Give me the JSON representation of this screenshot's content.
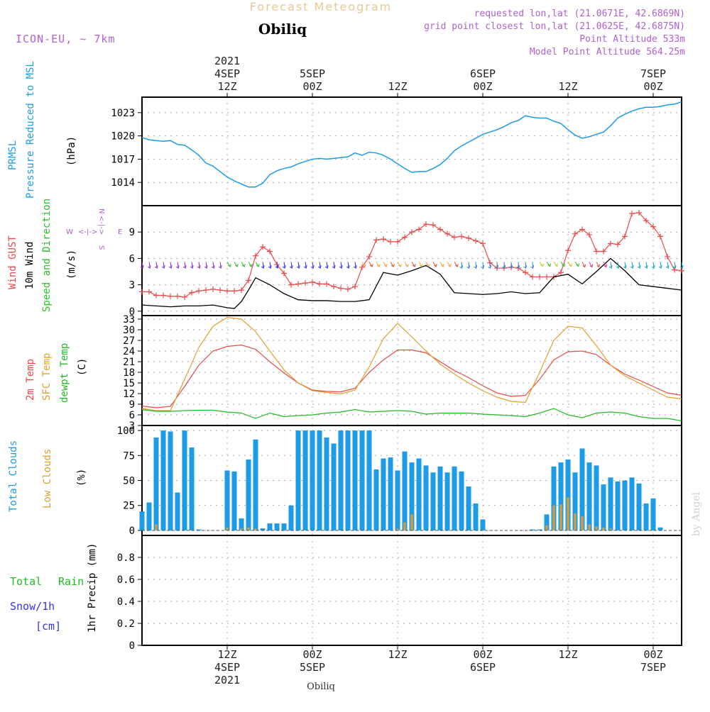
{
  "header": {
    "title": "Forecast Meteogram",
    "location": "Obiliq",
    "model": "ICON-EU, ~ 7km",
    "requested": "requested lon,lat (21.0671E, 42.6869N)",
    "gridpoint": "grid point closest lon,lat (21.0625E, 42.6875N)",
    "point_alt": "Point Altitude 533m",
    "model_alt": "Model Point Altitude 564.25m"
  },
  "footer": {
    "location": "Obiliq",
    "credit": "by Angel"
  },
  "colors": {
    "pressure": "#1e9be6",
    "gust": "#e84a4a",
    "wind": "#000000",
    "dirlabel": "#2bbf2b",
    "temp2m": "#e84a4a",
    "sfc": "#e0a030",
    "dew": "#22bb22",
    "total_clouds": "#1e9be6",
    "low_clouds": "#c8a048",
    "rain": "#22bb22",
    "snow": "#3333ee",
    "purple": "#b060d0"
  },
  "time_axis": {
    "top": [
      {
        "t": 12,
        "lines": [
          "2021",
          "4SEP",
          "12Z"
        ]
      },
      {
        "t": 24,
        "lines": [
          "5SEP",
          "00Z"
        ]
      },
      {
        "t": 36,
        "lines": [
          "12Z"
        ]
      },
      {
        "t": 48,
        "lines": [
          "6SEP",
          "00Z"
        ]
      },
      {
        "t": 60,
        "lines": [
          "12Z"
        ]
      },
      {
        "t": 72,
        "lines": [
          "7SEP",
          "00Z"
        ]
      }
    ],
    "bottom": [
      {
        "t": 12,
        "lines": [
          "12Z",
          "4SEP",
          "2021"
        ]
      },
      {
        "t": 24,
        "lines": [
          "00Z",
          "5SEP"
        ]
      },
      {
        "t": 36,
        "lines": [
          "12Z"
        ]
      },
      {
        "t": 48,
        "lines": [
          "00Z",
          "6SEP"
        ]
      },
      {
        "t": 60,
        "lines": [
          "12Z"
        ]
      },
      {
        "t": 72,
        "lines": [
          "00Z",
          "7SEP"
        ]
      }
    ]
  },
  "chart_data": [
    {
      "type": "line",
      "ylabel": "PRMSL Pressure Reduced to MSL (hPa)",
      "ylim": [
        1011,
        1025
      ],
      "yticks": [
        1014,
        1017,
        1020,
        1023
      ],
      "x_hours_from_4SEP_00Z": true,
      "series": [
        {
          "name": "PRMSL",
          "x": [
            0,
            1,
            2,
            3,
            4,
            5,
            6,
            7,
            8,
            9,
            10,
            11,
            12,
            13,
            14,
            15,
            16,
            17,
            18,
            19,
            20,
            21,
            22,
            23,
            24,
            25,
            26,
            27,
            28,
            29,
            30,
            31,
            32,
            33,
            34,
            35,
            36,
            37,
            38,
            39,
            40,
            41,
            42,
            43,
            44,
            45,
            46,
            47,
            48,
            49,
            50,
            51,
            52,
            53,
            54,
            55,
            56,
            57,
            58,
            59,
            60,
            61,
            62,
            63,
            64,
            65,
            66,
            67,
            68,
            69,
            70,
            71,
            72,
            73,
            74,
            75,
            76
          ],
          "values": [
            1019.8,
            1019.5,
            1019.4,
            1019.3,
            1019.4,
            1018.9,
            1018.8,
            1018.2,
            1017.5,
            1016.5,
            1016.1,
            1015.4,
            1014.7,
            1014.2,
            1013.8,
            1013.4,
            1013.4,
            1013.9,
            1015.0,
            1015.5,
            1015.8,
            1016.0,
            1016.4,
            1016.7,
            1017.0,
            1017.1,
            1017.0,
            1017.1,
            1017.2,
            1017.3,
            1017.8,
            1017.5,
            1017.9,
            1017.8,
            1017.5,
            1017.0,
            1016.4,
            1015.8,
            1015.3,
            1015.4,
            1015.4,
            1015.8,
            1016.3,
            1017.1,
            1018.1,
            1018.7,
            1019.2,
            1019.7,
            1020.2,
            1020.5,
            1020.8,
            1021.2,
            1021.7,
            1022.0,
            1022.6,
            1022.4,
            1022.3,
            1022.3,
            1021.9,
            1021.6,
            1020.8,
            1020.1,
            1019.7,
            1019.9,
            1020.2,
            1020.5,
            1021.3,
            1022.3,
            1022.8,
            1023.2,
            1023.5,
            1023.7,
            1023.7,
            1023.8,
            1024.0,
            1024.1,
            1024.4
          ]
        }
      ]
    },
    {
      "type": "line",
      "ylabel": "Wind GUST 10m Wind Speed and Direction (m/s)",
      "ylim": [
        -0.5,
        12
      ],
      "yticks": [
        0,
        3,
        6,
        9
      ],
      "series": [
        {
          "name": "Wind GUST",
          "x": [
            0,
            1,
            2,
            3,
            4,
            5,
            6,
            7,
            8,
            9,
            10,
            11,
            12,
            13,
            14,
            15,
            16,
            17,
            18,
            19,
            20,
            21,
            22,
            23,
            24,
            25,
            26,
            27,
            28,
            29,
            30,
            31,
            32,
            33,
            34,
            35,
            36,
            37,
            38,
            39,
            40,
            41,
            42,
            43,
            44,
            45,
            46,
            47,
            48,
            49,
            50,
            51,
            52,
            53,
            54,
            55,
            56,
            57,
            58,
            59,
            60,
            61,
            62,
            63,
            64,
            65,
            66,
            67,
            68,
            69,
            70,
            71,
            72,
            73,
            74,
            75,
            76
          ],
          "values": [
            2.2,
            2.2,
            1.8,
            1.8,
            1.7,
            1.7,
            1.6,
            2.1,
            2.3,
            2.4,
            2.5,
            2.4,
            2.3,
            2.3,
            2.4,
            3.5,
            6.3,
            7.3,
            6.8,
            5.3,
            4.3,
            3.0,
            3.1,
            3.2,
            3.3,
            3.1,
            3.1,
            2.8,
            2.6,
            2.5,
            2.8,
            5.0,
            6.2,
            8.1,
            8.2,
            7.9,
            7.9,
            8.4,
            9.0,
            9.3,
            9.9,
            9.8,
            9.3,
            8.8,
            8.4,
            8.5,
            8.3,
            8.0,
            7.7,
            5.5,
            4.9,
            4.9,
            5.0,
            4.9,
            4.4,
            3.9,
            3.9,
            3.9,
            3.9,
            4.4,
            6.9,
            8.8,
            9.3,
            8.7,
            6.8,
            6.8,
            7.7,
            7.6,
            8.5,
            11.1,
            11.2,
            10.3,
            9.6,
            8.5,
            6.2,
            4.7,
            4.6
          ]
        },
        {
          "name": "10m Wind",
          "x": [
            0,
            2,
            4,
            6,
            8,
            10,
            12,
            13,
            14,
            15,
            16,
            18,
            20,
            22,
            24,
            26,
            28,
            30,
            32,
            34,
            36,
            38,
            40,
            42,
            44,
            46,
            48,
            50,
            52,
            54,
            56,
            58,
            60,
            62,
            64,
            66,
            68,
            70,
            72,
            74,
            76
          ],
          "values": [
            0.7,
            0.6,
            0.5,
            0.6,
            0.6,
            0.7,
            0.4,
            0.3,
            1.1,
            2.4,
            3.8,
            3.0,
            2.0,
            1.3,
            1.2,
            1.2,
            1.1,
            1.1,
            1.3,
            4.4,
            4.1,
            4.6,
            5.2,
            4.2,
            2.1,
            2.0,
            1.9,
            2.0,
            2.2,
            2.0,
            2.1,
            3.9,
            4.2,
            3.1,
            4.5,
            6.0,
            4.6,
            3.0,
            2.8,
            2.6,
            2.4
          ]
        }
      ],
      "wind_direction_legend": "W <-|-> E, N/S"
    },
    {
      "type": "line",
      "ylabel": "2m Temp SFC Temp dewpt Temp (C)",
      "ylim": [
        3,
        34
      ],
      "yticks": [
        3,
        6,
        9,
        12,
        15,
        18,
        21,
        24,
        27,
        30,
        33
      ],
      "series": [
        {
          "name": "2m Temp",
          "x": [
            0,
            2,
            4,
            6,
            8,
            10,
            12,
            14,
            16,
            18,
            20,
            22,
            24,
            26,
            28,
            30,
            32,
            34,
            36,
            38,
            40,
            42,
            44,
            46,
            48,
            50,
            52,
            54,
            56,
            58,
            60,
            62,
            64,
            66,
            68,
            70,
            72,
            74,
            76
          ],
          "values": [
            8.5,
            8.0,
            8.4,
            14,
            20,
            24,
            25.3,
            25.7,
            24.5,
            21,
            17.8,
            15,
            13,
            12.6,
            12.5,
            13.5,
            18,
            21.5,
            24.3,
            24.3,
            23.5,
            21,
            18.5,
            16.5,
            14.2,
            12.2,
            11.2,
            11.5,
            16,
            21.5,
            23.8,
            24,
            23,
            20,
            17.5,
            15.8,
            14,
            12.2,
            11.5
          ]
        },
        {
          "name": "SFC Temp",
          "x": [
            0,
            2,
            4,
            6,
            8,
            10,
            12,
            14,
            16,
            18,
            20,
            22,
            24,
            26,
            28,
            30,
            32,
            34,
            36,
            38,
            40,
            42,
            44,
            46,
            48,
            50,
            52,
            54,
            56,
            58,
            60,
            62,
            64,
            66,
            68,
            70,
            72,
            74,
            76
          ],
          "values": [
            7.8,
            7.2,
            7.2,
            16,
            25,
            31,
            33.5,
            33,
            29.5,
            24,
            18.7,
            15,
            12.8,
            12.3,
            11.9,
            13,
            19.5,
            27.5,
            31.8,
            28,
            24,
            20.3,
            17.5,
            15,
            12.8,
            11,
            9.8,
            9.5,
            18,
            27,
            31,
            30.5,
            25.5,
            20,
            17,
            15,
            13,
            11,
            10.5
          ]
        },
        {
          "name": "dewpt Temp",
          "x": [
            0,
            2,
            4,
            6,
            8,
            10,
            12,
            14,
            16,
            18,
            20,
            22,
            24,
            26,
            28,
            30,
            32,
            34,
            36,
            38,
            40,
            42,
            44,
            46,
            48,
            50,
            52,
            54,
            56,
            58,
            60,
            62,
            64,
            66,
            68,
            70,
            72,
            74,
            76
          ],
          "values": [
            7.5,
            7.0,
            7.0,
            7.2,
            7.3,
            7.3,
            6.8,
            6.5,
            5.0,
            6.5,
            5.5,
            5.8,
            6.0,
            6.5,
            6.8,
            7.5,
            6.8,
            7.0,
            7.2,
            7.0,
            6.2,
            6.5,
            6.5,
            6.5,
            6.2,
            6.0,
            5.8,
            5.5,
            6.5,
            7.8,
            6.0,
            5.2,
            6.5,
            6.8,
            6.5,
            5.5,
            5.0,
            5.0,
            4.3
          ]
        }
      ]
    },
    {
      "type": "bar",
      "ylabel": "Total Clouds Low Clouds (%)",
      "ylim": [
        -5,
        105
      ],
      "yticks": [
        0,
        25,
        50,
        75,
        100
      ],
      "series": [
        {
          "name": "Total Clouds",
          "x": [
            0,
            1,
            2,
            3,
            4,
            5,
            6,
            7,
            8,
            9,
            10,
            11,
            12,
            13,
            14,
            15,
            16,
            17,
            18,
            19,
            20,
            21,
            22,
            23,
            24,
            25,
            26,
            27,
            28,
            29,
            30,
            31,
            32,
            33,
            34,
            35,
            36,
            37,
            38,
            39,
            40,
            41,
            42,
            43,
            44,
            45,
            46,
            47,
            48,
            49,
            50,
            51,
            52,
            53,
            54,
            55,
            56,
            57,
            58,
            59,
            60,
            61,
            62,
            63,
            64,
            65,
            66,
            67,
            68,
            69,
            70,
            71,
            72,
            73,
            74,
            75,
            76
          ],
          "values": [
            19,
            28,
            93,
            100,
            99,
            38,
            100,
            83,
            1,
            0,
            0,
            0,
            60,
            59,
            12,
            71,
            91,
            2,
            7,
            7,
            7,
            25,
            100,
            100,
            100,
            100,
            93,
            87,
            100,
            100,
            100,
            100,
            100,
            61,
            72,
            73,
            60,
            79,
            68,
            72,
            65,
            58,
            64,
            58,
            64,
            59,
            44,
            27,
            11,
            0,
            0,
            0,
            0,
            0,
            0,
            1,
            1,
            16,
            64,
            68,
            71,
            58,
            82,
            68,
            65,
            46,
            53,
            49,
            50,
            53,
            47,
            27,
            32,
            3,
            0,
            0,
            0
          ]
        },
        {
          "name": "Low Clouds",
          "x": [
            0,
            1,
            2,
            3,
            4,
            5,
            6,
            7,
            8,
            9,
            10,
            11,
            12,
            13,
            14,
            15,
            16,
            17,
            18,
            19,
            20,
            21,
            22,
            23,
            24,
            25,
            26,
            27,
            28,
            29,
            30,
            31,
            32,
            33,
            34,
            35,
            36,
            37,
            38,
            39,
            40,
            41,
            42,
            43,
            44,
            45,
            46,
            47,
            48,
            49,
            50,
            51,
            52,
            53,
            54,
            55,
            56,
            57,
            58,
            59,
            60,
            61,
            62,
            63,
            64,
            65,
            66,
            67,
            68,
            69,
            70,
            71,
            72,
            73,
            74,
            75,
            76
          ],
          "values": [
            0,
            0,
            6,
            0,
            0,
            0,
            0,
            0,
            0,
            0,
            0,
            0,
            3,
            0,
            2,
            3,
            2,
            0,
            0,
            0,
            0,
            0,
            0,
            0,
            0,
            0,
            0,
            0,
            0,
            0,
            0,
            0,
            0,
            0,
            0,
            0,
            2,
            8,
            16,
            0,
            0,
            0,
            0,
            0,
            0,
            0,
            0,
            0,
            0,
            0,
            0,
            0,
            0,
            0,
            0,
            0,
            0,
            5,
            25,
            26,
            33,
            17,
            14,
            6,
            4,
            3,
            2,
            0,
            0,
            0,
            0,
            0,
            0,
            0,
            0,
            0,
            0
          ]
        }
      ]
    },
    {
      "type": "bar",
      "ylabel": "1hr Precip (mm)",
      "legend": [
        "Total",
        "Rain",
        "Snow/1h",
        "[cm]"
      ],
      "ylim": [
        0,
        1.0
      ],
      "yticks": [
        0,
        0.2,
        0.4,
        0.6,
        0.8
      ],
      "ytick_labels": [
        "0",
        "0.2",
        "0.4",
        "0.6",
        "0.8"
      ],
      "series": [
        {
          "name": "Total Rain",
          "values": []
        }
      ]
    }
  ]
}
